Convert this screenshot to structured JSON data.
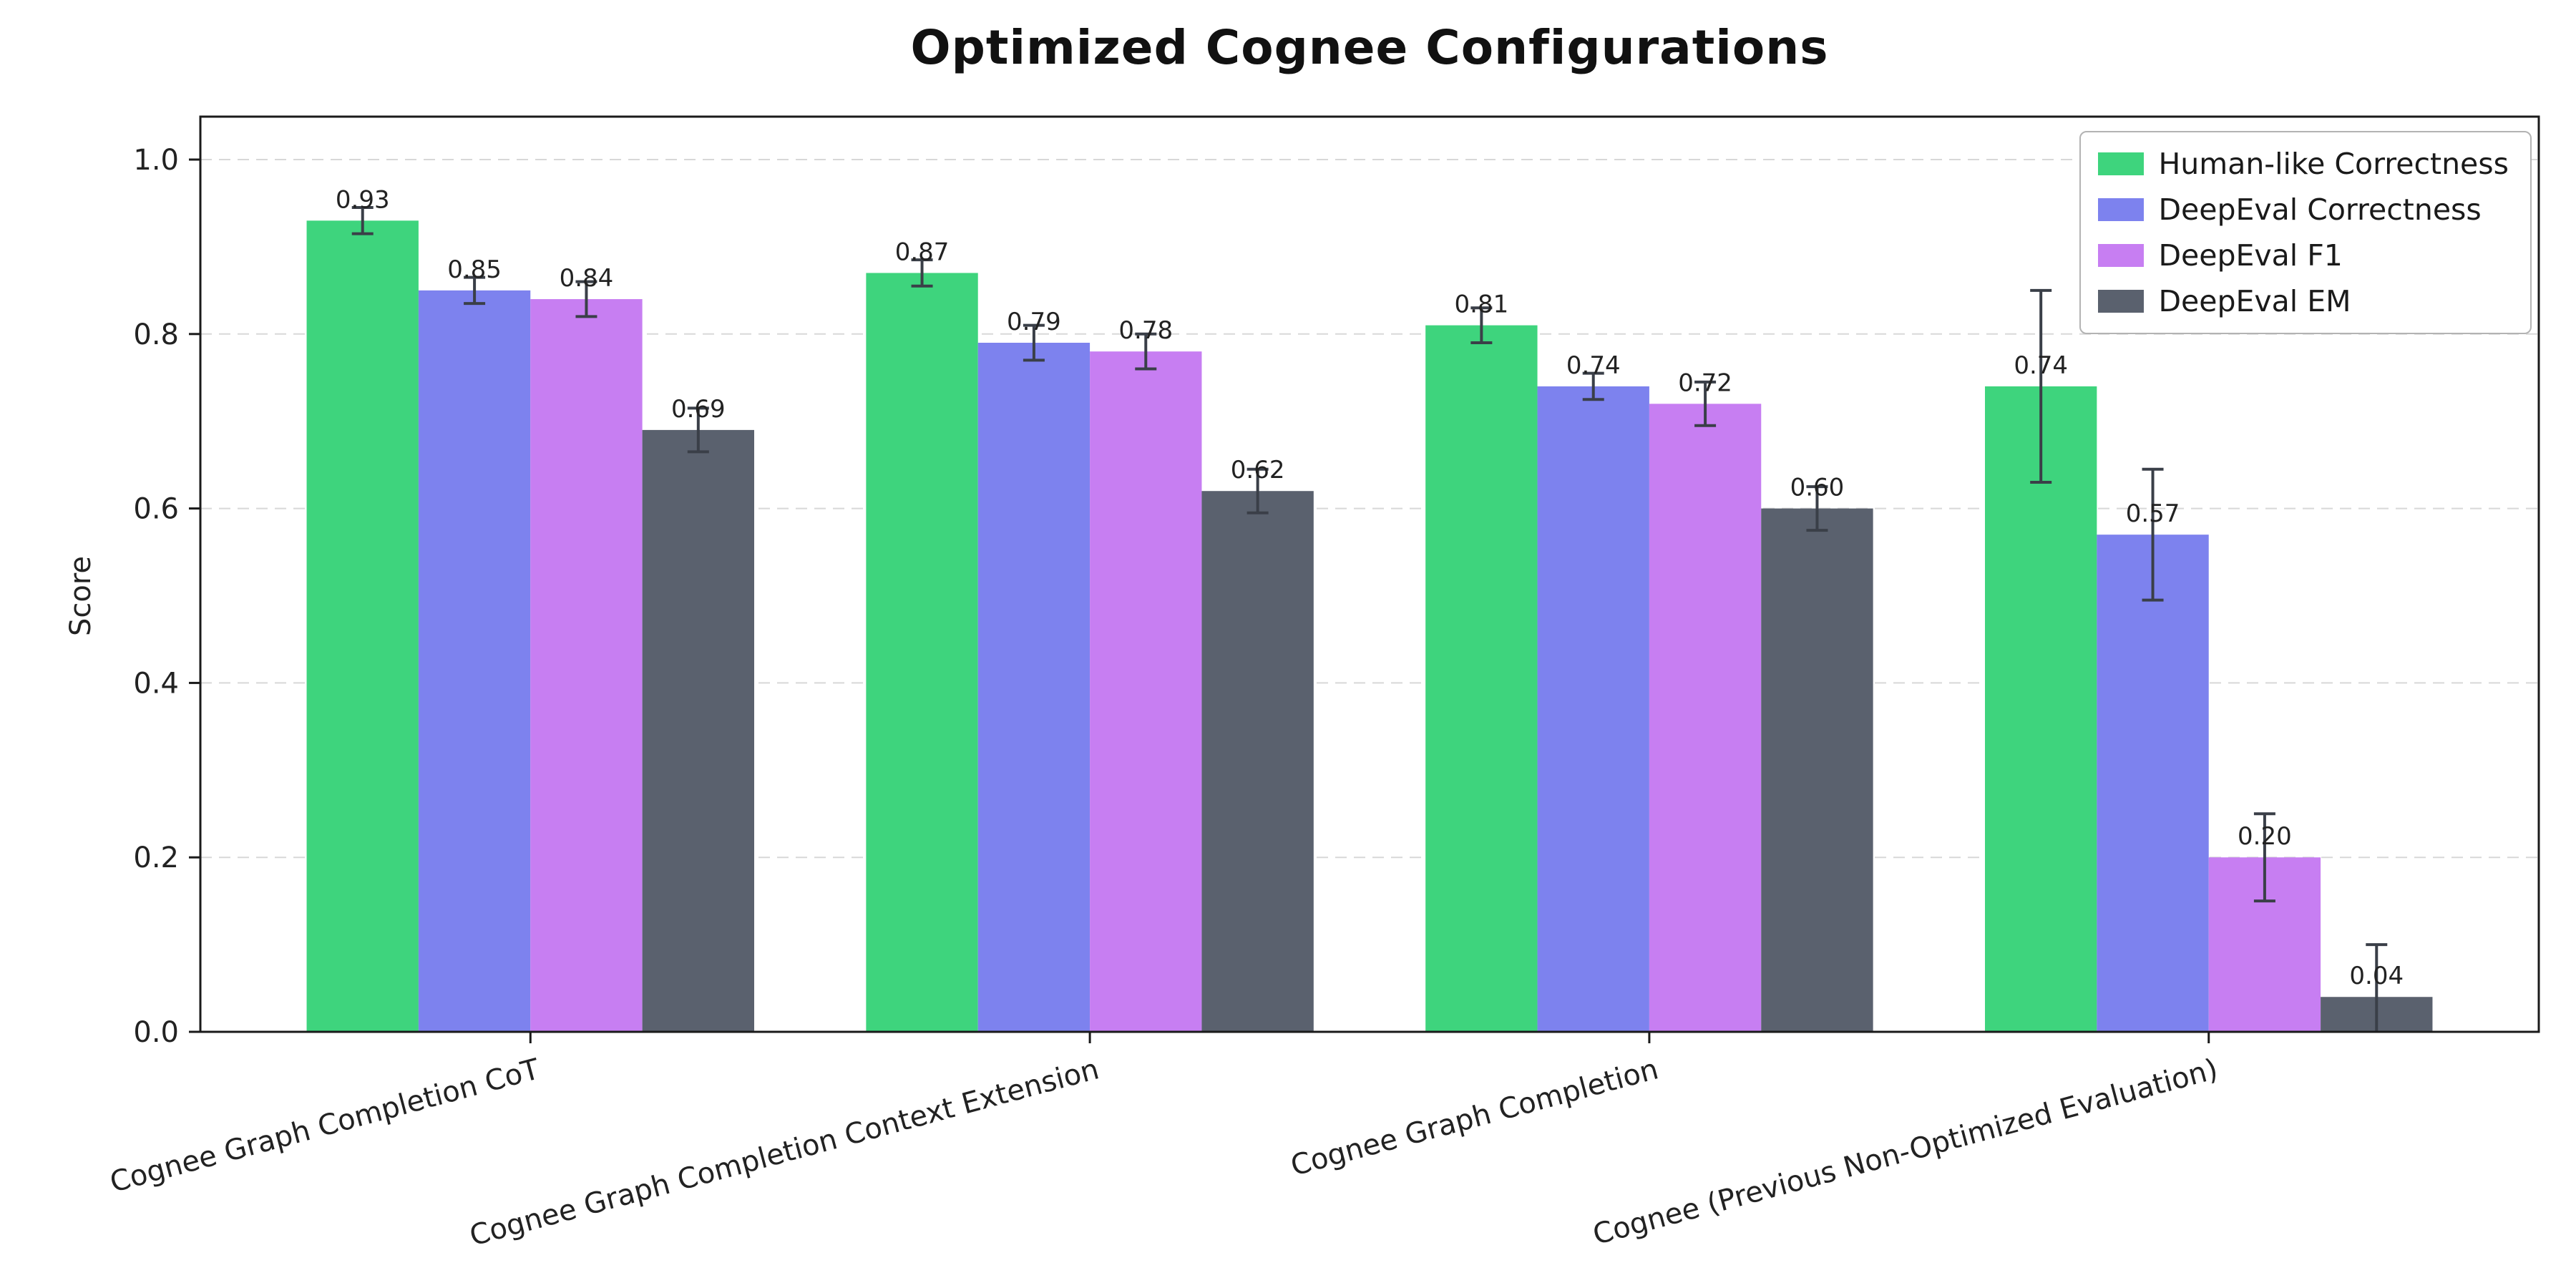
{
  "chart_data": {
    "type": "bar",
    "title": "Optimized Cognee Configurations",
    "xlabel": "",
    "ylabel": "Score",
    "ylim": [
      0,
      1.05
    ],
    "yticks": [
      0.0,
      0.2,
      0.4,
      0.6,
      0.8,
      1.0
    ],
    "grid": "horizontal-dashed",
    "legend_position": "upper right",
    "categories": [
      "Cognee Graph Completion CoT",
      "Cognee Graph Completion Context Extension",
      "Cognee Graph Completion",
      "Cognee (Previous Non-Optimized Evaluation)"
    ],
    "series": [
      {
        "name": "Human-like Correctness",
        "color": "#3ed47d",
        "values": [
          0.93,
          0.87,
          0.81,
          0.74
        ],
        "errors": [
          0.015,
          0.015,
          0.02,
          0.11
        ]
      },
      {
        "name": "DeepEval Correctness",
        "color": "#7d82ee",
        "values": [
          0.85,
          0.79,
          0.74,
          0.57
        ],
        "errors": [
          0.015,
          0.02,
          0.015,
          0.075
        ]
      },
      {
        "name": "DeepEval F1",
        "color": "#c77ef2",
        "values": [
          0.84,
          0.78,
          0.72,
          0.2
        ],
        "errors": [
          0.02,
          0.02,
          0.025,
          0.05
        ]
      },
      {
        "name": "DeepEval EM",
        "color": "#5a616e",
        "values": [
          0.69,
          0.62,
          0.6,
          0.04
        ],
        "errors": [
          0.025,
          0.025,
          0.025,
          0.06
        ]
      }
    ],
    "colors": {
      "errorbar": "#3a3f48",
      "grid": "#d8d8d8",
      "axis": "#1a1a1a",
      "tick_label": "#222222",
      "value_label": "#222222"
    }
  }
}
